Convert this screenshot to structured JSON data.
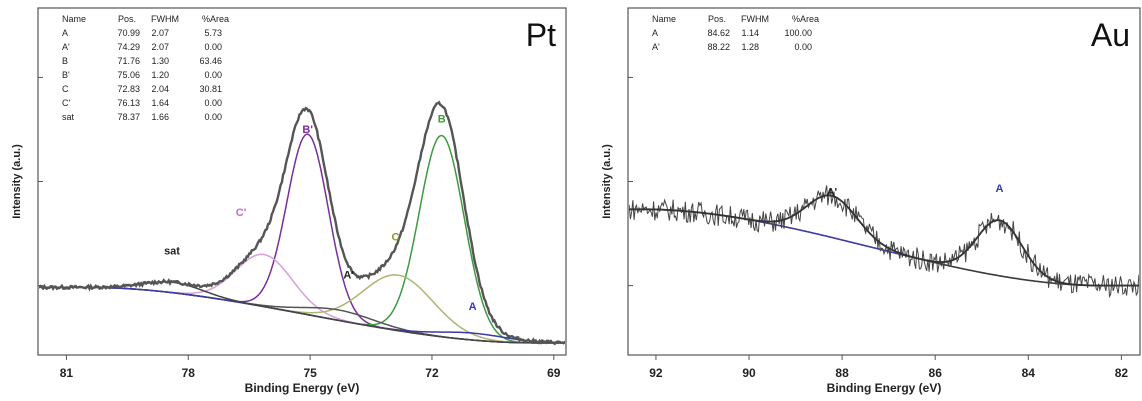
{
  "chart_data": [
    {
      "type": "line",
      "panel_label": "Pt",
      "xlabel": "Binding Energy (eV)",
      "ylabel": "Intensity (a.u.)",
      "xlim": [
        81.7,
        68.7
      ],
      "ylim": [
        0,
        100
      ],
      "x_ticks": [
        81,
        78,
        75,
        72,
        69
      ],
      "x_tick_labels": [
        "81",
        "78",
        "75",
        "72",
        "69"
      ],
      "x_reversed": true,
      "grid": false,
      "legend_table": {
        "headers": [
          "Name",
          "Pos.",
          "FWHM",
          "%Area"
        ],
        "rows": [
          {
            "name": "A",
            "pos": "70.99",
            "fwhm": "2.07",
            "area": "5.73",
            "color": "#3a3aa8"
          },
          {
            "name": "A'",
            "pos": "74.29",
            "fwhm": "2.07",
            "area": "0.00",
            "color": "#3a3aa8"
          },
          {
            "name": "B",
            "pos": "71.76",
            "fwhm": "1.30",
            "area": "63.46",
            "color": "#3d9a3d"
          },
          {
            "name": "B'",
            "pos": "75.06",
            "fwhm": "1.20",
            "area": "0.00",
            "color": "#7a2e9a"
          },
          {
            "name": "C",
            "pos": "72.83",
            "fwhm": "2.04",
            "area": "30.81",
            "color": "#8a9a2a"
          },
          {
            "name": "C'",
            "pos": "76.13",
            "fwhm": "1.64",
            "area": "0.00",
            "color": "#c86ac8"
          },
          {
            "name": "sat",
            "pos": "78.37",
            "fwhm": "1.66",
            "area": "0.00",
            "color": "#222222"
          }
        ]
      },
      "peak_labels": [
        {
          "text": "B'",
          "x": 75.06,
          "y": 64,
          "color": "#7a2e9a"
        },
        {
          "text": "B",
          "x": 71.76,
          "y": 67,
          "color": "#3d9a3d"
        },
        {
          "text": "C'",
          "x": 76.7,
          "y": 40,
          "color": "#c86ac8"
        },
        {
          "text": "C",
          "x": 72.9,
          "y": 33,
          "color": "#8a9a2a"
        },
        {
          "text": "A'",
          "x": 74.05,
          "y": 22,
          "color": "#222222"
        },
        {
          "text": "A",
          "x": 71.0,
          "y": 13,
          "color": "#3a3aa8"
        },
        {
          "text": "sat",
          "x": 78.4,
          "y": 29,
          "color": "#222222"
        }
      ],
      "background": {
        "x_start": 80.5,
        "x_end": 69.5,
        "y_start": 19.5,
        "y_end": 3.5,
        "color": "#8a7a5a"
      },
      "components": [
        {
          "name": "B'",
          "center": 75.06,
          "fwhm": 1.2,
          "height": 52,
          "color": "#7a2e9a"
        },
        {
          "name": "B",
          "center": 71.76,
          "fwhm": 1.3,
          "height": 58,
          "color": "#3d9a3d"
        },
        {
          "name": "C'",
          "center": 76.13,
          "fwhm": 1.64,
          "height": 15,
          "color": "#d8a0d8"
        },
        {
          "name": "C",
          "center": 72.83,
          "fwhm": 2.04,
          "height": 16,
          "color": "#a8b870"
        },
        {
          "name": "A'",
          "center": 74.29,
          "fwhm": 2.07,
          "height": 3,
          "color": "#555555"
        },
        {
          "name": "A",
          "center": 70.99,
          "fwhm": 2.07,
          "height": 2,
          "color": "#3a3aa8"
        },
        {
          "name": "sat",
          "center": 78.37,
          "fwhm": 1.66,
          "height": 3,
          "color": "#444444"
        }
      ],
      "envelope_color": "#555555"
    },
    {
      "type": "line",
      "panel_label": "Au",
      "xlabel": "Binding Energy (eV)",
      "ylabel": "Intensity (a.u.)",
      "xlim": [
        92.6,
        81.6
      ],
      "ylim": [
        0,
        100
      ],
      "x_ticks": [
        92,
        90,
        88,
        86,
        84,
        82
      ],
      "x_tick_labels": [
        "92",
        "90",
        "88",
        "86",
        "84",
        "82"
      ],
      "x_reversed": true,
      "grid": false,
      "legend_table": {
        "headers": [
          "Name",
          "Pos.",
          "FWHM",
          "%Area"
        ],
        "rows": [
          {
            "name": "A",
            "pos": "84.62",
            "fwhm": "1.14",
            "area": "100.00",
            "color": "#3a3aa8"
          },
          {
            "name": "A'",
            "pos": "88.22",
            "fwhm": "1.28",
            "area": "0.00",
            "color": "#3a3aa8"
          }
        ]
      },
      "peak_labels": [
        {
          "text": "A'",
          "x": 88.22,
          "y": 46,
          "color": "#222222"
        },
        {
          "text": "A",
          "x": 84.62,
          "y": 47,
          "color": "#3a3aa8"
        }
      ],
      "background": {
        "x_start": 92.3,
        "x_end": 82.4,
        "y_start": 42,
        "y_end": 20,
        "color": "#a89a78"
      },
      "components": [
        {
          "name": "A'",
          "center": 88.22,
          "fwhm": 1.28,
          "height": 12,
          "color": "#3a3a3a"
        },
        {
          "name": "A",
          "center": 84.62,
          "fwhm": 1.14,
          "height": 16,
          "color": "#3a3aa8"
        }
      ],
      "noise_amplitude": 3.2,
      "envelope_color": "#333333"
    }
  ]
}
